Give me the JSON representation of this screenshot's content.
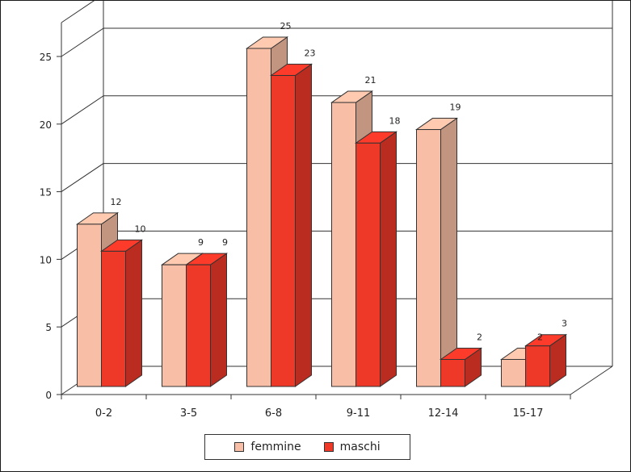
{
  "chart_data": {
    "type": "bar",
    "title": "",
    "xlabel": "",
    "ylabel": "",
    "categories": [
      "0-2",
      "3-5",
      "6-8",
      "9-11",
      "12-14",
      "15-17"
    ],
    "series": [
      {
        "name": "femmine",
        "values": [
          12,
          9,
          25,
          21,
          19,
          2
        ],
        "color": "#f9bfa6"
      },
      {
        "name": "maschi",
        "values": [
          10,
          9,
          23,
          18,
          2,
          3
        ],
        "color": "#ee3828"
      }
    ],
    "ylim": [
      0,
      25
    ],
    "yticks": [
      0,
      5,
      10,
      15,
      20,
      25
    ],
    "grid": true,
    "legend_position": "bottom",
    "style": "3d-clustered-column"
  }
}
